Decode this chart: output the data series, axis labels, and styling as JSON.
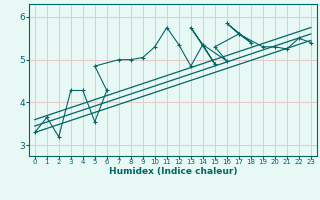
{
  "xlabel": "Humidex (Indice chaleur)",
  "ylabel": "",
  "bg_color": "#e8f8f5",
  "grid_color": "#e8c8c8",
  "line_color": "#006666",
  "xlim": [
    -0.5,
    23.5
  ],
  "ylim": [
    2.75,
    6.3
  ],
  "xticks": [
    0,
    1,
    2,
    3,
    4,
    5,
    6,
    7,
    8,
    9,
    10,
    11,
    12,
    13,
    14,
    15,
    16,
    17,
    18,
    19,
    20,
    21,
    22,
    23
  ],
  "yticks": [
    3,
    4,
    5,
    6
  ],
  "series_zigzag_x": [
    0,
    1,
    2,
    3,
    4,
    5,
    6,
    5,
    7,
    8,
    9,
    10,
    11,
    12,
    13,
    14,
    13,
    15,
    14,
    16,
    15,
    17,
    16,
    18,
    17,
    19,
    20,
    21,
    22,
    23
  ],
  "series_zigzag_y": [
    3.3,
    3.65,
    3.2,
    4.28,
    4.28,
    3.55,
    4.28,
    4.85,
    5.0,
    5.0,
    5.05,
    5.3,
    5.75,
    5.35,
    4.85,
    5.35,
    5.75,
    4.9,
    5.35,
    4.97,
    5.3,
    5.6,
    5.85,
    5.4,
    5.6,
    5.3,
    5.3,
    5.25,
    5.5,
    5.4
  ],
  "series_line1_x": [
    0,
    23
  ],
  "series_line1_y": [
    3.3,
    5.45
  ],
  "series_line2_x": [
    0,
    23
  ],
  "series_line2_y": [
    3.45,
    5.6
  ],
  "series_line3_x": [
    0,
    23
  ],
  "series_line3_y": [
    3.6,
    5.75
  ]
}
